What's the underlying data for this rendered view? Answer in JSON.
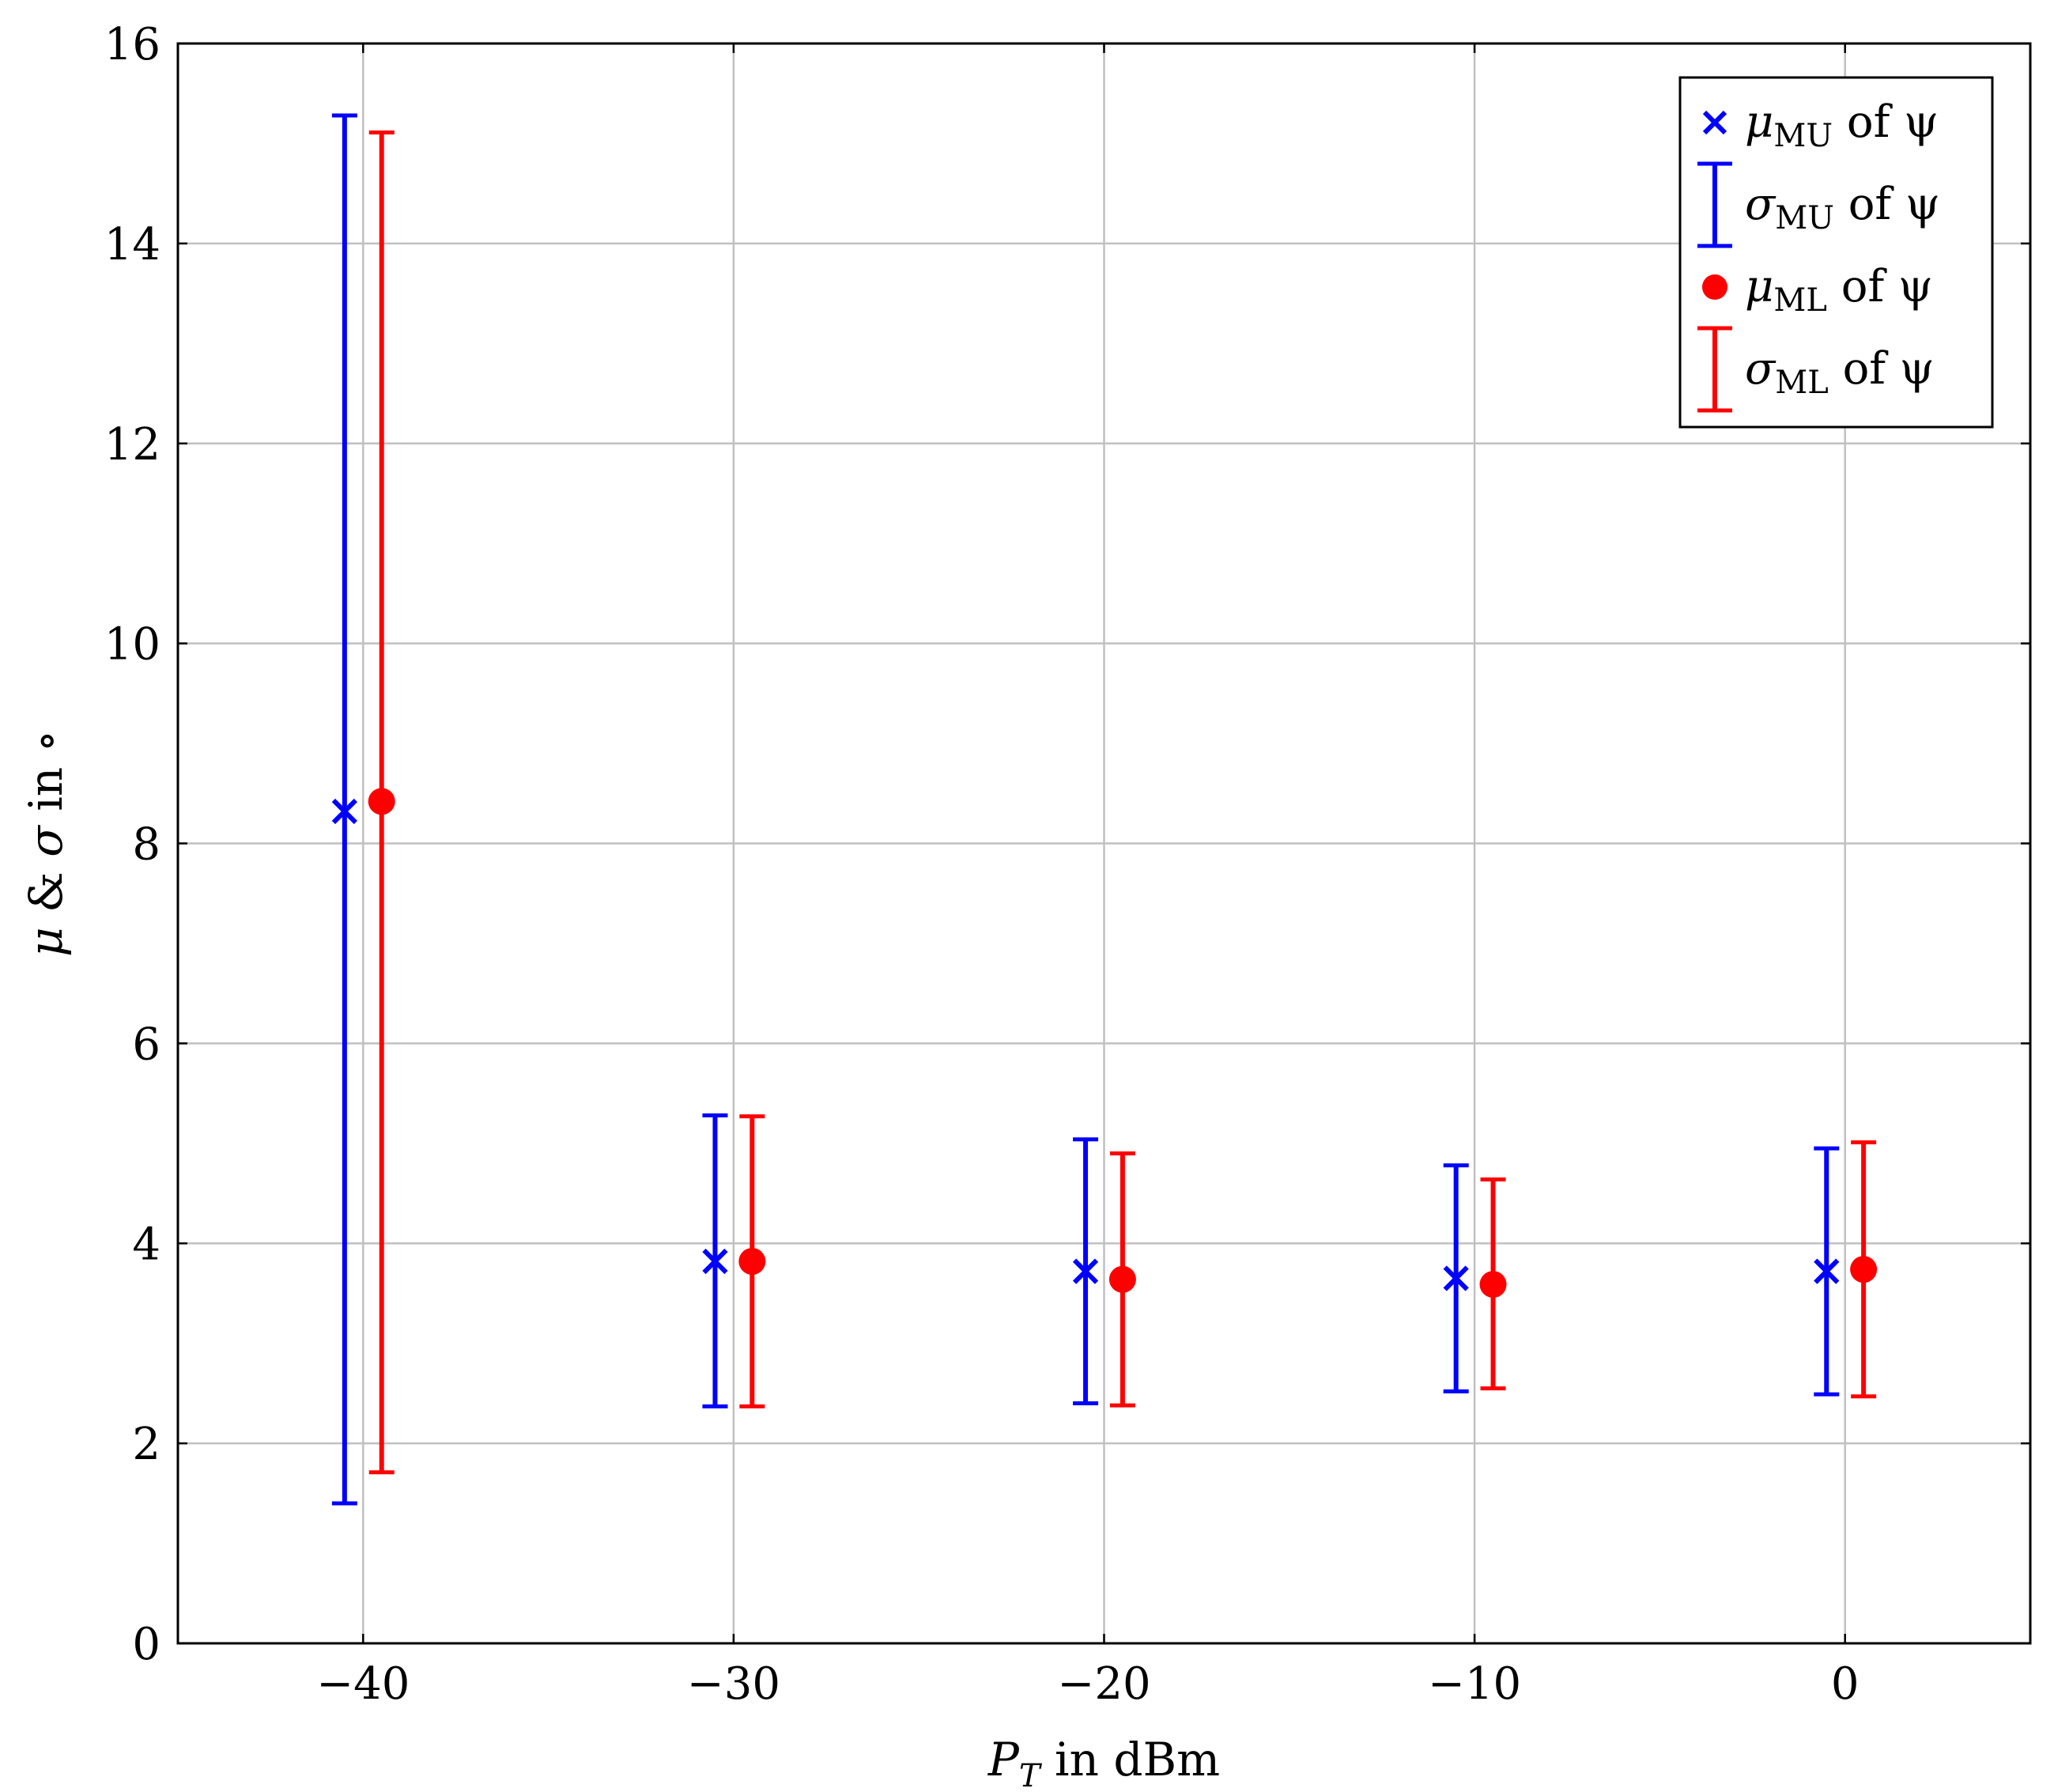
{
  "chart_data": {
    "type": "scatter",
    "xlabel": {
      "main": "P",
      "sub": "T",
      "rest": " in dBm"
    },
    "ylabel": {
      "mu": "μ",
      "amp": " & ",
      "sigma": "σ",
      "rest": " in ∘"
    },
    "xlim": [
      -45,
      5
    ],
    "ylim": [
      0,
      16
    ],
    "xticks": [
      -40,
      -30,
      -20,
      -10,
      0
    ],
    "xtick_labels": [
      "−40",
      "−30",
      "−20",
      "−10",
      "0"
    ],
    "yticks": [
      0,
      2,
      4,
      6,
      8,
      10,
      12,
      14,
      16
    ],
    "ytick_labels": [
      "0",
      "2",
      "4",
      "6",
      "8",
      "10",
      "12",
      "14",
      "16"
    ],
    "grid": true,
    "legend_position": "top-right",
    "series": [
      {
        "name": "μ_MU of ψ",
        "legend": {
          "sym": "μ",
          "sub": "MU",
          "rest": " of ψ"
        },
        "marker": "x",
        "color": "#0000ff",
        "x": [
          -40.5,
          -30.5,
          -20.5,
          -10.5,
          -0.5
        ],
        "y": [
          8.32,
          3.82,
          3.72,
          3.65,
          3.72
        ]
      },
      {
        "name": "σ_MU of ψ",
        "legend": {
          "sym": "σ",
          "sub": "MU",
          "rest": " of ψ"
        },
        "marker": "errorbar",
        "color": "#0000ff",
        "x": [
          -40.5,
          -30.5,
          -20.5,
          -10.5,
          -0.5
        ],
        "low": [
          1.4,
          2.37,
          2.4,
          2.52,
          2.49
        ],
        "high": [
          15.28,
          5.28,
          5.04,
          4.78,
          4.95
        ]
      },
      {
        "name": "μ_ML of ψ",
        "legend": {
          "sym": "μ",
          "sub": "ML",
          "rest": " of ψ"
        },
        "marker": "o",
        "color": "#ff0000",
        "x": [
          -39.5,
          -29.5,
          -19.5,
          -9.5,
          0.5
        ],
        "y": [
          8.42,
          3.82,
          3.64,
          3.59,
          3.74
        ]
      },
      {
        "name": "σ_ML of ψ",
        "legend": {
          "sym": "σ",
          "sub": "ML",
          "rest": " of ψ"
        },
        "marker": "errorbar",
        "color": "#ff0000",
        "x": [
          -39.5,
          -29.5,
          -19.5,
          -9.5,
          0.5
        ],
        "low": [
          1.71,
          2.37,
          2.38,
          2.55,
          2.47
        ],
        "high": [
          15.11,
          5.27,
          4.9,
          4.64,
          5.01
        ]
      }
    ]
  }
}
